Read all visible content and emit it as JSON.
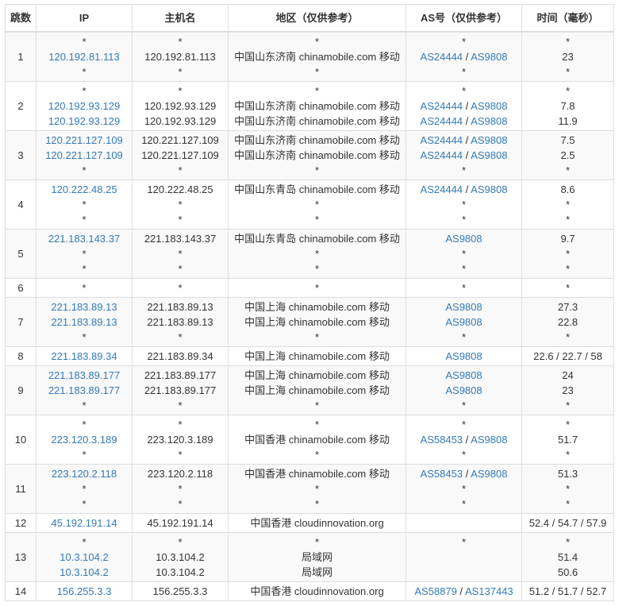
{
  "table": {
    "headers": [
      "跳数",
      "IP",
      "主机名",
      "地区（仅供参考）",
      "AS号（仅供参考）",
      "时间（毫秒）"
    ],
    "rows": [
      {
        "hop": "1",
        "ip": [
          "*",
          "120.192.81.113",
          "*"
        ],
        "host": [
          "*",
          "120.192.81.113",
          "*"
        ],
        "region": [
          "*",
          "中国山东济南 chinamobile.com 移动",
          "*"
        ],
        "as": [
          "*",
          "AS24444 / AS9808",
          "*"
        ],
        "time": [
          "*",
          "23",
          "*"
        ]
      },
      {
        "hop": "2",
        "ip": [
          "*",
          "120.192.93.129",
          "120.192.93.129"
        ],
        "host": [
          "*",
          "120.192.93.129",
          "120.192.93.129"
        ],
        "region": [
          "*",
          "中国山东济南 chinamobile.com 移动",
          "中国山东济南 chinamobile.com 移动"
        ],
        "as": [
          "*",
          "AS24444 / AS9808",
          "AS24444 / AS9808"
        ],
        "time": [
          "*",
          "7.8",
          "11.9"
        ]
      },
      {
        "hop": "3",
        "ip": [
          "120.221.127.109",
          "120.221.127.109",
          "*"
        ],
        "host": [
          "120.221.127.109",
          "120.221.127.109",
          "*"
        ],
        "region": [
          "中国山东济南 chinamobile.com 移动",
          "中国山东济南 chinamobile.com 移动",
          "*"
        ],
        "as": [
          "AS24444 / AS9808",
          "AS24444 / AS9808",
          "*"
        ],
        "time": [
          "7.5",
          "2.5",
          "*"
        ]
      },
      {
        "hop": "4",
        "ip": [
          "120.222.48.25",
          "*",
          "*"
        ],
        "host": [
          "120.222.48.25",
          "*",
          "*"
        ],
        "region": [
          "中国山东青岛 chinamobile.com 移动",
          "*",
          "*"
        ],
        "as": [
          "AS24444 / AS9808",
          "*",
          "*"
        ],
        "time": [
          "8.6",
          "*",
          "*"
        ]
      },
      {
        "hop": "5",
        "ip": [
          "221.183.143.37",
          "*",
          "*"
        ],
        "host": [
          "221.183.143.37",
          "*",
          "*"
        ],
        "region": [
          "中国山东青岛 chinamobile.com 移动",
          "*",
          "*"
        ],
        "as": [
          "AS9808",
          "*",
          "*"
        ],
        "time": [
          "9.7",
          "*",
          "*"
        ]
      },
      {
        "hop": "6",
        "ip": [
          "*"
        ],
        "host": [
          "*"
        ],
        "region": [
          "*"
        ],
        "as": [
          "*"
        ],
        "time": [
          "*"
        ]
      },
      {
        "hop": "7",
        "ip": [
          "221.183.89.13",
          "221.183.89.13",
          "*"
        ],
        "host": [
          "221.183.89.13",
          "221.183.89.13",
          "*"
        ],
        "region": [
          "中国上海 chinamobile.com 移动",
          "中国上海 chinamobile.com 移动",
          "*"
        ],
        "as": [
          "AS9808",
          "AS9808",
          "*"
        ],
        "time": [
          "27.3",
          "22.8",
          "*"
        ]
      },
      {
        "hop": "8",
        "ip": [
          "221.183.89.34"
        ],
        "host": [
          "221.183.89.34"
        ],
        "region": [
          "中国上海 chinamobile.com 移动"
        ],
        "as": [
          "AS9808"
        ],
        "time": [
          "22.6 / 22.7 / 58"
        ]
      },
      {
        "hop": "9",
        "ip": [
          "221.183.89.177",
          "221.183.89.177",
          "*"
        ],
        "host": [
          "221.183.89.177",
          "221.183.89.177",
          "*"
        ],
        "region": [
          "中国上海 chinamobile.com 移动",
          "中国上海 chinamobile.com 移动",
          "*"
        ],
        "as": [
          "AS9808",
          "AS9808",
          "*"
        ],
        "time": [
          "24",
          "23",
          "*"
        ]
      },
      {
        "hop": "10",
        "ip": [
          "*",
          "223.120.3.189",
          "*"
        ],
        "host": [
          "*",
          "223.120.3.189",
          "*"
        ],
        "region": [
          "*",
          "中国香港 chinamobile.com 移动",
          "*"
        ],
        "as": [
          "*",
          "AS58453 / AS9808",
          "*"
        ],
        "time": [
          "*",
          "51.7",
          "*"
        ]
      },
      {
        "hop": "11",
        "ip": [
          "223.120.2.118",
          "*",
          "*"
        ],
        "host": [
          "223.120.2.118",
          "*",
          "*"
        ],
        "region": [
          "中国香港 chinamobile.com 移动",
          "*",
          "*"
        ],
        "as": [
          "AS58453 / AS9808",
          "*",
          "*"
        ],
        "time": [
          "51.3",
          "*",
          "*"
        ]
      },
      {
        "hop": "12",
        "ip": [
          "45.192.191.14"
        ],
        "host": [
          "45.192.191.14"
        ],
        "region": [
          "中国香港 cloudinnovation.org"
        ],
        "as": [
          ""
        ],
        "time": [
          "52.4 / 54.7 / 57.9"
        ]
      },
      {
        "hop": "13",
        "ip": [
          "*",
          "10.3.104.2",
          "10.3.104.2"
        ],
        "host": [
          "*",
          "10.3.104.2",
          "10.3.104.2"
        ],
        "region": [
          "*",
          "局域网",
          "局域网"
        ],
        "as": [
          "*",
          "",
          ""
        ],
        "time": [
          "*",
          "51.4",
          "50.6"
        ]
      },
      {
        "hop": "14",
        "ip": [
          "156.255.3.3"
        ],
        "host": [
          "156.255.3.3"
        ],
        "region": [
          "中国香港 cloudinnovation.org"
        ],
        "as": [
          "AS58879 / AS137443"
        ],
        "time": [
          "51.2 / 51.7 / 52.7"
        ]
      }
    ]
  },
  "colors": {
    "link": "#337ab7",
    "border": "#dddddd",
    "stripe": "#f9f9f9",
    "text": "#333333"
  }
}
